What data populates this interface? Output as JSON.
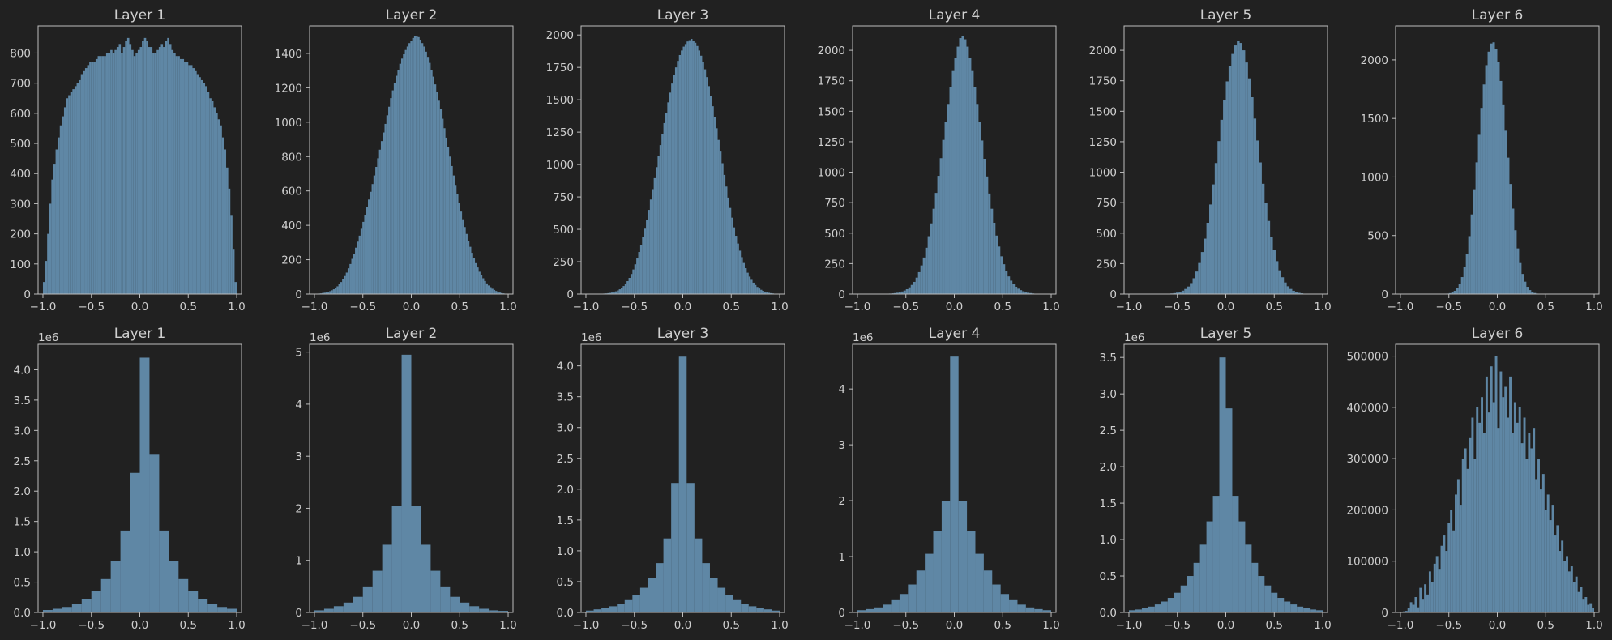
{
  "colors": {
    "background": "#212121",
    "bars": "#5f87a5",
    "text": "#cfcfcf",
    "axes": "#bdbdbd"
  },
  "chart_data": [
    {
      "type": "bar",
      "title": "Layer 1",
      "row": 1,
      "col": 1,
      "multiplier": "",
      "bin_range": [
        -1,
        1
      ],
      "xlim": [
        -1.05,
        1.05
      ],
      "ylim": [
        0,
        890
      ],
      "xticks": [
        -1,
        -0.5,
        0,
        0.5,
        1
      ],
      "xtick_labels": [
        "−1.0",
        "−0.5",
        "0.0",
        "0.5",
        "1.0"
      ],
      "yticks": [
        0,
        100,
        200,
        300,
        400,
        500,
        600,
        700,
        800
      ],
      "ytick_labels": [
        "0",
        "100",
        "200",
        "300",
        "400",
        "500",
        "600",
        "700",
        "800"
      ],
      "values": [
        40,
        110,
        200,
        300,
        380,
        430,
        480,
        520,
        560,
        590,
        620,
        650,
        660,
        670,
        680,
        690,
        700,
        710,
        730,
        740,
        750,
        760,
        770,
        770,
        770,
        780,
        790,
        790,
        790,
        790,
        800,
        800,
        810,
        800,
        810,
        820,
        830,
        800,
        820,
        840,
        850,
        830,
        810,
        790,
        800,
        810,
        820,
        840,
        850,
        840,
        820,
        820,
        800,
        800,
        810,
        820,
        830,
        820,
        840,
        850,
        830,
        810,
        800,
        790,
        790,
        780,
        780,
        770,
        770,
        760,
        760,
        750,
        740,
        730,
        720,
        710,
        700,
        690,
        670,
        650,
        640,
        620,
        600,
        580,
        560,
        520,
        480,
        420,
        350,
        260,
        150,
        40
      ]
    },
    {
      "type": "bar",
      "title": "Layer 2",
      "row": 1,
      "col": 2,
      "multiplier": "",
      "bin_range": [
        -1,
        1
      ],
      "xlim": [
        -1.05,
        1.05
      ],
      "ylim": [
        0,
        1560
      ],
      "xticks": [
        -1,
        -0.5,
        0,
        0.5,
        1
      ],
      "xtick_labels": [
        "−1.0",
        "−0.5",
        "0.0",
        "0.5",
        "1.0"
      ],
      "yticks": [
        0,
        200,
        400,
        600,
        800,
        1000,
        1200,
        1400
      ],
      "ytick_labels": [
        "0",
        "200",
        "400",
        "600",
        "800",
        "1000",
        "1200",
        "1400"
      ],
      "values": [
        1,
        2,
        3,
        4,
        6,
        8,
        10,
        13,
        17,
        22,
        28,
        35,
        45,
        57,
        70,
        86,
        105,
        125,
        150,
        175,
        205,
        235,
        270,
        305,
        340,
        380,
        420,
        460,
        505,
        550,
        595,
        640,
        690,
        740,
        790,
        840,
        890,
        940,
        990,
        1040,
        1090,
        1140,
        1185,
        1230,
        1270,
        1305,
        1340,
        1370,
        1395,
        1420,
        1440,
        1460,
        1475,
        1490,
        1500,
        1500,
        1495,
        1480,
        1460,
        1440,
        1410,
        1380,
        1345,
        1305,
        1265,
        1220,
        1175,
        1125,
        1075,
        1020,
        965,
        910,
        855,
        800,
        745,
        690,
        635,
        580,
        530,
        480,
        435,
        390,
        350,
        310,
        275,
        240,
        210,
        180,
        155,
        130,
        110,
        92,
        76,
        62,
        50,
        40,
        31,
        24,
        18,
        13,
        9,
        6,
        4,
        2,
        1
      ]
    },
    {
      "type": "bar",
      "title": "Layer 3",
      "row": 1,
      "col": 3,
      "multiplier": "",
      "bin_range": [
        -1,
        1
      ],
      "xlim": [
        -1.05,
        1.05
      ],
      "ylim": [
        0,
        2070
      ],
      "xticks": [
        -1,
        -0.5,
        0,
        0.5,
        1
      ],
      "xtick_labels": [
        "−1.0",
        "−0.5",
        "0.0",
        "0.5",
        "1.0"
      ],
      "yticks": [
        0,
        250,
        500,
        750,
        1000,
        1250,
        1500,
        1750,
        2000
      ],
      "ytick_labels": [
        "0",
        "250",
        "500",
        "750",
        "1000",
        "1250",
        "1500",
        "1750",
        "2000"
      ],
      "values": [
        0,
        0,
        0,
        1,
        1,
        1,
        2,
        2,
        3,
        4,
        5,
        7,
        9,
        12,
        16,
        21,
        28,
        37,
        48,
        62,
        80,
        100,
        125,
        155,
        190,
        230,
        275,
        325,
        380,
        440,
        505,
        575,
        650,
        730,
        810,
        895,
        980,
        1065,
        1150,
        1235,
        1320,
        1400,
        1480,
        1555,
        1625,
        1690,
        1750,
        1800,
        1845,
        1880,
        1910,
        1930,
        1950,
        1960,
        1970,
        1955,
        1940,
        1915,
        1880,
        1840,
        1790,
        1735,
        1675,
        1605,
        1530,
        1450,
        1365,
        1280,
        1190,
        1100,
        1010,
        920,
        830,
        745,
        665,
        590,
        515,
        450,
        390,
        335,
        285,
        240,
        200,
        165,
        135,
        110,
        88,
        70,
        55,
        43,
        33,
        25,
        19,
        14,
        10,
        7,
        5,
        3,
        2,
        1
      ]
    },
    {
      "type": "bar",
      "title": "Layer 4",
      "row": 1,
      "col": 4,
      "multiplier": "",
      "bin_range": [
        -1,
        1
      ],
      "xlim": [
        -1.05,
        1.05
      ],
      "ylim": [
        0,
        2200
      ],
      "xticks": [
        -1,
        -0.5,
        0,
        0.5,
        1
      ],
      "xtick_labels": [
        "−1.0",
        "−0.5",
        "0.0",
        "0.5",
        "1.0"
      ],
      "yticks": [
        0,
        250,
        500,
        750,
        1000,
        1250,
        1500,
        1750,
        2000
      ],
      "ytick_labels": [
        "0",
        "250",
        "500",
        "750",
        "1000",
        "1250",
        "1500",
        "1750",
        "2000"
      ],
      "values": [
        0,
        0,
        0,
        0,
        0,
        0,
        0,
        1,
        1,
        1,
        2,
        2,
        3,
        4,
        6,
        8,
        11,
        15,
        21,
        29,
        40,
        55,
        75,
        100,
        135,
        180,
        235,
        300,
        380,
        475,
        580,
        700,
        830,
        970,
        1115,
        1265,
        1415,
        1560,
        1700,
        1830,
        1940,
        2030,
        2100,
        2120,
        2090,
        2030,
        1940,
        1830,
        1700,
        1560,
        1410,
        1260,
        1110,
        965,
        825,
        700,
        585,
        480,
        390,
        310,
        245,
        190,
        145,
        110,
        82,
        60,
        44,
        32,
        23,
        16,
        11,
        8,
        5,
        3,
        2,
        1,
        1,
        0,
        0,
        0
      ]
    },
    {
      "type": "bar",
      "title": "Layer 5",
      "row": 1,
      "col": 5,
      "multiplier": "",
      "bin_range": [
        -1,
        1
      ],
      "xlim": [
        -1.05,
        1.05
      ],
      "ylim": [
        0,
        2200
      ],
      "xticks": [
        -1,
        -0.5,
        0,
        0.5,
        1
      ],
      "xtick_labels": [
        "−1.0",
        "−0.5",
        "0.0",
        "0.5",
        "1.0"
      ],
      "yticks": [
        0,
        250,
        500,
        750,
        1000,
        1250,
        1500,
        1750,
        2000
      ],
      "ytick_labels": [
        "0",
        "250",
        "500",
        "750",
        "1000",
        "1250",
        "1500",
        "1750",
        "2000"
      ],
      "values": [
        0,
        0,
        0,
        0,
        0,
        0,
        0,
        0,
        0,
        0,
        1,
        1,
        1,
        2,
        3,
        5,
        8,
        12,
        18,
        28,
        42,
        62,
        90,
        130,
        185,
        255,
        345,
        455,
        585,
        735,
        900,
        1075,
        1255,
        1430,
        1595,
        1745,
        1870,
        1970,
        2040,
        2080,
        2060,
        2000,
        1900,
        1770,
        1615,
        1440,
        1260,
        1080,
        905,
        745,
        600,
        470,
        360,
        270,
        195,
        138,
        95,
        64,
        42,
        27,
        17,
        10,
        6,
        3,
        2,
        1,
        1,
        0,
        0,
        0
      ]
    },
    {
      "type": "bar",
      "title": "Layer 6",
      "row": 1,
      "col": 6,
      "multiplier": "",
      "bin_range": [
        -1,
        1
      ],
      "xlim": [
        -1.05,
        1.05
      ],
      "ylim": [
        0,
        2290
      ],
      "xticks": [
        -1,
        -0.5,
        0,
        0.5,
        1
      ],
      "xtick_labels": [
        "−1.0",
        "−0.5",
        "0.0",
        "0.5",
        "1.0"
      ],
      "yticks": [
        0,
        500,
        1000,
        1500,
        2000
      ],
      "ytick_labels": [
        "0",
        "500",
        "1000",
        "1500",
        "2000"
      ],
      "values": [
        0,
        0,
        0,
        0,
        0,
        0,
        0,
        0,
        0,
        0,
        0,
        0,
        0,
        0,
        0,
        0,
        1,
        1,
        2,
        4,
        8,
        15,
        28,
        50,
        88,
        145,
        230,
        345,
        495,
        680,
        895,
        1125,
        1360,
        1590,
        1790,
        1955,
        2070,
        2140,
        2150,
        2090,
        1980,
        1820,
        1620,
        1395,
        1165,
        940,
        730,
        545,
        390,
        265,
        172,
        106,
        62,
        34,
        18,
        9,
        4,
        2,
        1,
        0,
        0,
        0,
        0,
        0,
        0,
        0,
        0,
        0,
        0,
        0,
        0,
        0,
        0,
        0,
        0,
        0,
        0,
        0,
        0,
        0
      ]
    },
    {
      "type": "bar",
      "title": "Layer 1",
      "row": 2,
      "col": 1,
      "multiplier": "1e6",
      "bin_range": [
        -1,
        1
      ],
      "xlim": [
        -1.05,
        1.05
      ],
      "ylim": [
        0,
        4.42
      ],
      "xticks": [
        -1,
        -0.5,
        0,
        0.5,
        1
      ],
      "xtick_labels": [
        "−1.0",
        "−0.5",
        "0.0",
        "0.5",
        "1.0"
      ],
      "yticks": [
        0,
        0.5,
        1,
        1.5,
        2,
        2.5,
        3,
        3.5,
        4
      ],
      "ytick_labels": [
        "0.0",
        "0.5",
        "1.0",
        "1.5",
        "2.0",
        "2.5",
        "3.0",
        "3.5",
        "4.0"
      ],
      "values": [
        0.04,
        0.06,
        0.09,
        0.14,
        0.22,
        0.35,
        0.55,
        0.85,
        1.35,
        2.3,
        4.2,
        2.6,
        1.35,
        0.85,
        0.55,
        0.35,
        0.22,
        0.14,
        0.09,
        0.06
      ]
    },
    {
      "type": "bar",
      "title": "Layer 2",
      "row": 2,
      "col": 2,
      "multiplier": "1e6",
      "bin_range": [
        -1,
        1
      ],
      "xlim": [
        -1.05,
        1.05
      ],
      "ylim": [
        0,
        5.15
      ],
      "xticks": [
        -1,
        -0.5,
        0,
        0.5,
        1
      ],
      "xtick_labels": [
        "−1.0",
        "−0.5",
        "0.0",
        "0.5",
        "1.0"
      ],
      "yticks": [
        0,
        1,
        2,
        3,
        4,
        5
      ],
      "ytick_labels": [
        "0",
        "1",
        "2",
        "3",
        "4",
        "5"
      ],
      "values": [
        0.04,
        0.07,
        0.12,
        0.19,
        0.3,
        0.5,
        0.8,
        1.3,
        2.05,
        4.95,
        2.05,
        1.3,
        0.8,
        0.5,
        0.3,
        0.19,
        0.12,
        0.07,
        0.04,
        0.03
      ]
    },
    {
      "type": "bar",
      "title": "Layer 3",
      "row": 2,
      "col": 3,
      "multiplier": "1e6",
      "bin_range": [
        -1,
        1
      ],
      "xlim": [
        -1.05,
        1.05
      ],
      "ylim": [
        0,
        4.35
      ],
      "xticks": [
        -1,
        -0.5,
        0,
        0.5,
        1
      ],
      "xtick_labels": [
        "−1.0",
        "−0.5",
        "0.0",
        "0.5",
        "1.0"
      ],
      "yticks": [
        0,
        0.5,
        1,
        1.5,
        2,
        2.5,
        3,
        3.5,
        4
      ],
      "ytick_labels": [
        "0.0",
        "0.5",
        "1.0",
        "1.5",
        "2.0",
        "2.5",
        "3.0",
        "3.5",
        "4.0"
      ],
      "values": [
        0.03,
        0.05,
        0.07,
        0.1,
        0.14,
        0.2,
        0.28,
        0.4,
        0.56,
        0.8,
        1.2,
        2.1,
        4.15,
        2.1,
        1.2,
        0.8,
        0.56,
        0.4,
        0.28,
        0.2,
        0.14,
        0.1,
        0.07,
        0.05,
        0.03
      ]
    },
    {
      "type": "bar",
      "title": "Layer 4",
      "row": 2,
      "col": 4,
      "multiplier": "1e6",
      "bin_range": [
        -1,
        1
      ],
      "xlim": [
        -1.05,
        1.05
      ],
      "ylim": [
        0,
        4.8
      ],
      "xticks": [
        -1,
        -0.5,
        0,
        0.5,
        1
      ],
      "xtick_labels": [
        "−1.0",
        "−0.5",
        "0.0",
        "0.5",
        "1.0"
      ],
      "yticks": [
        0,
        1,
        2,
        3,
        4
      ],
      "ytick_labels": [
        "0",
        "1",
        "2",
        "3",
        "4"
      ],
      "values": [
        0.04,
        0.06,
        0.09,
        0.14,
        0.22,
        0.33,
        0.5,
        0.75,
        1.05,
        1.45,
        2.0,
        4.58,
        2.0,
        1.45,
        1.05,
        0.75,
        0.5,
        0.33,
        0.22,
        0.14,
        0.09,
        0.06,
        0.04
      ]
    },
    {
      "type": "bar",
      "title": "Layer 5",
      "row": 2,
      "col": 5,
      "multiplier": "1e6",
      "bin_range": [
        -1,
        1
      ],
      "xlim": [
        -1.05,
        1.05
      ],
      "ylim": [
        0,
        3.68
      ],
      "xticks": [
        -1,
        -0.5,
        0,
        0.5,
        1
      ],
      "xtick_labels": [
        "−1.0",
        "−0.5",
        "0.0",
        "0.5",
        "1.0"
      ],
      "yticks": [
        0,
        0.5,
        1,
        1.5,
        2,
        2.5,
        3,
        3.5
      ],
      "ytick_labels": [
        "0.0",
        "0.5",
        "1.0",
        "1.5",
        "2.0",
        "2.5",
        "3.0",
        "3.5"
      ],
      "values": [
        0.03,
        0.04,
        0.06,
        0.08,
        0.11,
        0.15,
        0.2,
        0.27,
        0.37,
        0.5,
        0.68,
        0.93,
        1.25,
        1.6,
        3.5,
        2.8,
        1.6,
        1.25,
        0.93,
        0.68,
        0.5,
        0.37,
        0.27,
        0.2,
        0.15,
        0.11,
        0.08,
        0.06,
        0.04,
        0.03
      ]
    },
    {
      "type": "bar",
      "title": "Layer 6",
      "row": 2,
      "col": 6,
      "multiplier": "",
      "bin_range": [
        -1,
        1
      ],
      "xlim": [
        -1.05,
        1.05
      ],
      "ylim": [
        0,
        523000
      ],
      "xticks": [
        -1,
        -0.5,
        0,
        0.5,
        1
      ],
      "xtick_labels": [
        "−1.0",
        "−0.5",
        "0.0",
        "0.5",
        "1.0"
      ],
      "yticks": [
        0,
        100000,
        200000,
        300000,
        400000,
        500000
      ],
      "ytick_labels": [
        "0",
        "100000",
        "200000",
        "300000",
        "400000",
        "500000"
      ],
      "values": [
        1000,
        2000,
        3000,
        8000,
        20000,
        15000,
        30000,
        10000,
        48000,
        25000,
        55000,
        35000,
        80000,
        60000,
        95000,
        110000,
        85000,
        130000,
        150000,
        120000,
        175000,
        200000,
        160000,
        230000,
        260000,
        210000,
        300000,
        320000,
        280000,
        340000,
        380000,
        300000,
        400000,
        370000,
        420000,
        350000,
        460000,
        390000,
        480000,
        410000,
        500000,
        360000,
        470000,
        420000,
        440000,
        380000,
        460000,
        350000,
        410000,
        370000,
        400000,
        330000,
        380000,
        300000,
        350000,
        320000,
        360000,
        260000,
        300000,
        240000,
        270000,
        200000,
        230000,
        180000,
        210000,
        150000,
        170000,
        120000,
        140000,
        100000,
        110000,
        80000,
        90000,
        60000,
        70000,
        40000,
        50000,
        25000,
        30000,
        15000,
        18000,
        8000
      ]
    }
  ]
}
